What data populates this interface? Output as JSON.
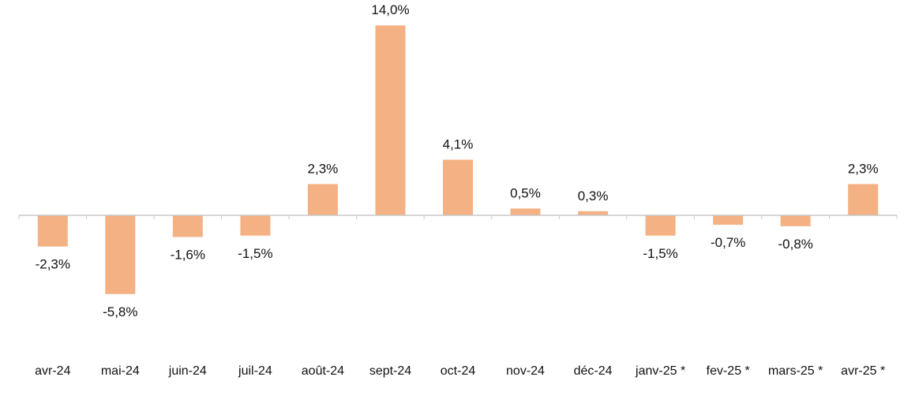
{
  "chart_data": {
    "type": "bar",
    "title": "",
    "xlabel": "",
    "ylabel": "",
    "ylim": [
      -6.0,
      14.0
    ],
    "grid": false,
    "legend": "none",
    "bar_color": "#f4b183",
    "axis_color": "#c8c8c8",
    "categories": [
      "avr-24",
      "mai-24",
      "juin-24",
      "juil-24",
      "août-24",
      "sept-24",
      "oct-24",
      "nov-24",
      "déc-24",
      "janv-25 *",
      "fev-25 *",
      "mars-25 *",
      "avr-25 *"
    ],
    "values": [
      -2.3,
      -5.8,
      -1.6,
      -1.5,
      2.3,
      14.0,
      4.1,
      0.5,
      0.3,
      -1.5,
      -0.7,
      -0.8,
      2.3
    ],
    "data_labels": [
      "-2,3%",
      "-5,8%",
      "-1,6%",
      "-1,5%",
      "2,3%",
      "14,0%",
      "4,1%",
      "0,5%",
      "0,3%",
      "-1,5%",
      "-0,7%",
      "-0,8%",
      "2,3%"
    ]
  }
}
